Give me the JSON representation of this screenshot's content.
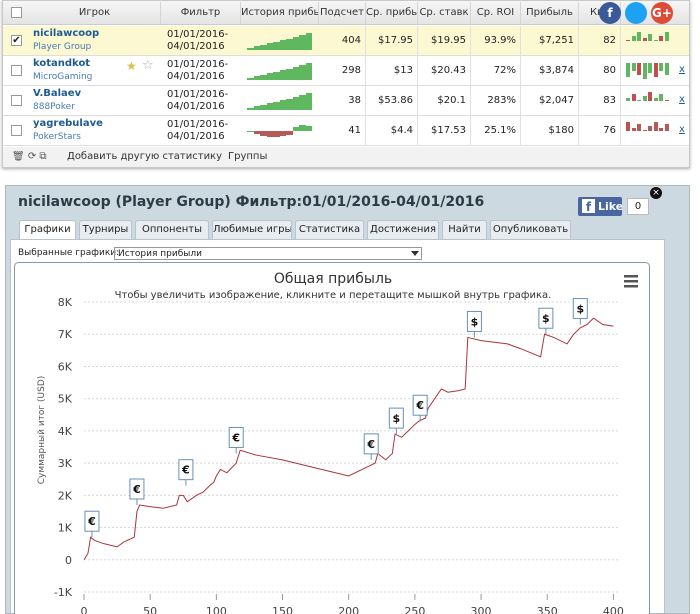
{
  "social": [
    "f",
    "G+"
  ],
  "table": {
    "header": [
      "Игрок",
      "Фильтр",
      "История прибы",
      "Подсчет",
      "Ср. прибы",
      "Ср. ставк",
      "Ср. ROI",
      "Прибыль",
      "Ква"
    ],
    "rows": [
      {
        "player": "nicilawcoop",
        "network": "Player Group",
        "filter": [
          "01/01/2016-",
          "04/01/2016"
        ],
        "count": "404",
        "avg_profit": "$17.95",
        "avg_bet": "$19.95",
        "roi": "93.9%",
        "profit": "$7,251",
        "kva": "82"
      },
      {
        "player": "kotandkot",
        "network": "MicroGaming",
        "filter": [
          "01/01/2016-",
          "04/01/2016"
        ],
        "count": "298",
        "avg_profit": "$13",
        "avg_bet": "$20.43",
        "roi": "72%",
        "profit": "$3,874",
        "kva": "80",
        "remove": "x"
      },
      {
        "player": "V.Balaev",
        "network": "888Poker",
        "filter": [
          "01/01/2016-",
          "04/01/2016"
        ],
        "count": "38",
        "avg_profit": "$53.86",
        "avg_bet": "$20.1",
        "roi": "283%",
        "profit": "$2,047",
        "kva": "83",
        "remove": "x"
      },
      {
        "player": "yagrebulave",
        "network": "PokerStars",
        "filter": [
          "01/01/2016-",
          "04/01/2016"
        ],
        "count": "41",
        "avg_profit": "$4.4",
        "avg_bet": "$17.53",
        "roi": "25.1%",
        "profit": "$180",
        "kva": "76",
        "remove": "x"
      }
    ],
    "footer": [
      "Добавить другую статистику",
      "Группы"
    ]
  },
  "panel": {
    "title": "nicilawcoop (Player Group) Фильтр:01/01/2016-04/01/2016",
    "like": "Like",
    "like_count": "0",
    "tabs": [
      "Графики",
      "Турниры",
      "Оппоненты",
      "Любимые игры",
      "Статистика",
      "Достижения",
      "Найти",
      "Опубликовать"
    ],
    "select_label": "Выбранные графики:",
    "select_value": "История прибыли"
  },
  "chart_data": {
    "type": "line",
    "title": "Общая прибыль",
    "subtitle": "Чтобы увеличить изображение, кликните и перетащите мышкой внутрь графика.",
    "y_label": "Суммарный итог (USD)",
    "xlim": [
      0,
      405
    ],
    "ylim": [
      -1000,
      8000
    ],
    "xticks": [
      0,
      50,
      100,
      150,
      200,
      250,
      300,
      350,
      400
    ],
    "yticks": [
      {
        "value": -1000,
        "label": "-1K"
      },
      0,
      {
        "value": 1000,
        "label": "1K"
      },
      {
        "value": 2000,
        "label": "2K"
      },
      {
        "value": 3000,
        "label": "3K"
      },
      {
        "value": 4000,
        "label": "4K"
      },
      {
        "value": 5000,
        "label": "5K"
      },
      {
        "value": 6000,
        "label": "6K"
      },
      {
        "value": 7000,
        "label": "7K"
      },
      {
        "value": 8000,
        "label": "8K"
      }
    ],
    "grid": true,
    "color": "#a8363c",
    "x": [
      0,
      3,
      5,
      8,
      15,
      25,
      30,
      38,
      40,
      42,
      50,
      60,
      70,
      72,
      75,
      78,
      85,
      90,
      95,
      98,
      100,
      103,
      108,
      115,
      118,
      130,
      150,
      170,
      190,
      200,
      215,
      220,
      222,
      228,
      233,
      235,
      240,
      245,
      250,
      253,
      258,
      260,
      265,
      270,
      275,
      283,
      288,
      290,
      300,
      320,
      330,
      345,
      348,
      355,
      365,
      370,
      375,
      380,
      385,
      392,
      400
    ],
    "values": [
      0,
      200,
      700,
      600,
      500,
      400,
      550,
      700,
      1500,
      1700,
      1650,
      1600,
      1700,
      2000,
      2000,
      1800,
      2000,
      2100,
      2300,
      2400,
      2600,
      2800,
      2700,
      3000,
      3400,
      3250,
      3100,
      2900,
      2700,
      2600,
      2900,
      3000,
      3300,
      3100,
      3300,
      3900,
      3800,
      4000,
      4200,
      4300,
      4400,
      4700,
      5000,
      5300,
      5200,
      5250,
      5300,
      6900,
      6800,
      6700,
      6550,
      6300,
      7000,
      6900,
      6700,
      7000,
      7200,
      7300,
      7500,
      7300,
      7250
    ],
    "annotations": [
      {
        "x": 6,
        "y": 700,
        "text": "€"
      },
      {
        "x": 40,
        "y": 1700,
        "text": "€"
      },
      {
        "x": 77,
        "y": 2300,
        "text": "€"
      },
      {
        "x": 115,
        "y": 3300,
        "text": "€"
      },
      {
        "x": 217,
        "y": 3100,
        "text": "€"
      },
      {
        "x": 236,
        "y": 3900,
        "text": "$"
      },
      {
        "x": 254,
        "y": 4300,
        "text": "€"
      },
      {
        "x": 295,
        "y": 6900,
        "text": "$"
      },
      {
        "x": 349,
        "y": 7000,
        "text": "$"
      },
      {
        "x": 375,
        "y": 7300,
        "text": "$"
      }
    ]
  }
}
